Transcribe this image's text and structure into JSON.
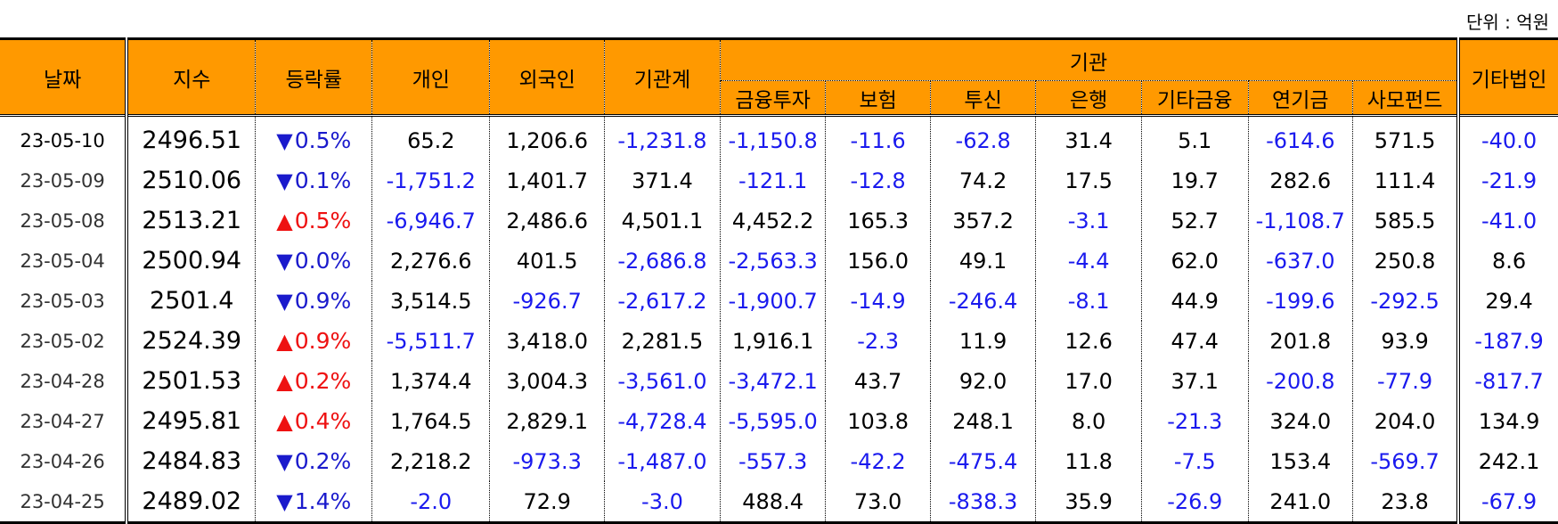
{
  "unit_label": "단위 : 억원",
  "headers": {
    "date": "날짜",
    "index": "지수",
    "rate": "등락률",
    "individual": "개인",
    "foreign": "외국인",
    "inst_total": "기관계",
    "inst_group": "기관",
    "inst_sub": [
      "금융투자",
      "보험",
      "투신",
      "은행",
      "기타금융",
      "연기금",
      "사모펀드"
    ],
    "other_corp": "기타법인"
  },
  "rows": [
    {
      "date": "23-05-10",
      "index": "2496.51",
      "dir": "down",
      "rate": "0.5%",
      "vals": [
        "65.2",
        "1,206.6",
        "-1,231.8",
        "-1,150.8",
        "-11.6",
        "-62.8",
        "31.4",
        "5.1",
        "-614.6",
        "571.5",
        "-40.0"
      ]
    },
    {
      "date": "23-05-09",
      "index": "2510.06",
      "dir": "down",
      "rate": "0.1%",
      "vals": [
        "-1,751.2",
        "1,401.7",
        "371.4",
        "-121.1",
        "-12.8",
        "74.2",
        "17.5",
        "19.7",
        "282.6",
        "111.4",
        "-21.9"
      ]
    },
    {
      "date": "23-05-08",
      "index": "2513.21",
      "dir": "up",
      "rate": "0.5%",
      "vals": [
        "-6,946.7",
        "2,486.6",
        "4,501.1",
        "4,452.2",
        "165.3",
        "357.2",
        "-3.1",
        "52.7",
        "-1,108.7",
        "585.5",
        "-41.0"
      ]
    },
    {
      "date": "23-05-04",
      "index": "2500.94",
      "dir": "down",
      "rate": "0.0%",
      "vals": [
        "2,276.6",
        "401.5",
        "-2,686.8",
        "-2,563.3",
        "156.0",
        "49.1",
        "-4.4",
        "62.0",
        "-637.0",
        "250.8",
        "8.6"
      ]
    },
    {
      "date": "23-05-03",
      "index": "2501.4",
      "dir": "down",
      "rate": "0.9%",
      "vals": [
        "3,514.5",
        "-926.7",
        "-2,617.2",
        "-1,900.7",
        "-14.9",
        "-246.4",
        "-8.1",
        "44.9",
        "-199.6",
        "-292.5",
        "29.4"
      ]
    },
    {
      "date": "23-05-02",
      "index": "2524.39",
      "dir": "up",
      "rate": "0.9%",
      "vals": [
        "-5,511.7",
        "3,418.0",
        "2,281.5",
        "1,916.1",
        "-2.3",
        "11.9",
        "12.6",
        "47.4",
        "201.8",
        "93.9",
        "-187.9"
      ]
    },
    {
      "date": "23-04-28",
      "index": "2501.53",
      "dir": "up",
      "rate": "0.2%",
      "vals": [
        "1,374.4",
        "3,004.3",
        "-3,561.0",
        "-3,472.1",
        "43.7",
        "92.0",
        "17.0",
        "37.1",
        "-200.8",
        "-77.9",
        "-817.7"
      ]
    },
    {
      "date": "23-04-27",
      "index": "2495.81",
      "dir": "up",
      "rate": "0.4%",
      "vals": [
        "1,764.5",
        "2,829.1",
        "-4,728.4",
        "-5,595.0",
        "103.8",
        "248.1",
        "8.0",
        "-21.3",
        "324.0",
        "204.0",
        "134.9"
      ]
    },
    {
      "date": "23-04-26",
      "index": "2484.83",
      "dir": "down",
      "rate": "0.2%",
      "vals": [
        "2,218.2",
        "-973.3",
        "-1,487.0",
        "-557.3",
        "-42.2",
        "-475.4",
        "11.8",
        "-7.5",
        "153.4",
        "-569.7",
        "242.1"
      ]
    },
    {
      "date": "23-04-25",
      "index": "2489.02",
      "dir": "down",
      "rate": "1.4%",
      "vals": [
        "-2.0",
        "72.9",
        "-3.0",
        "488.4",
        "73.0",
        "-838.3",
        "35.9",
        "-26.9",
        "241.0",
        "23.8",
        "-67.9"
      ]
    }
  ],
  "colors": {
    "header_bg": "#ff9900",
    "negative": "#1a1aee",
    "up": "#ee1111",
    "down": "#1a1acc"
  },
  "icons": {
    "up": "triangle-up-icon",
    "down": "triangle-down-icon"
  }
}
